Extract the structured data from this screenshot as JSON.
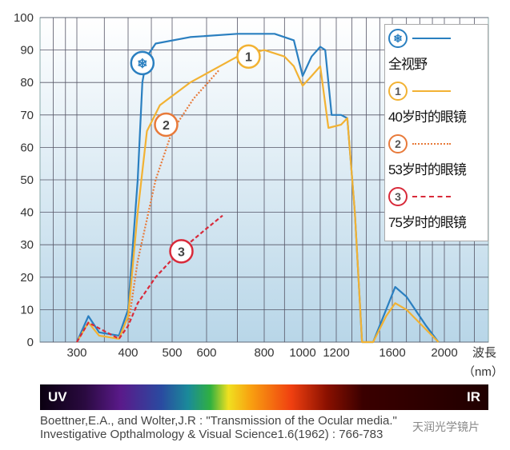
{
  "chart_data": {
    "type": "line",
    "title": "",
    "xlabel": "波長（nm）",
    "ylabel": "",
    "x_scale": "log",
    "xlim": [
      240,
      2300
    ],
    "ylim": [
      0,
      100
    ],
    "yticks": [
      0,
      10,
      20,
      30,
      40,
      50,
      60,
      70,
      80,
      90,
      100
    ],
    "xticks": [
      300,
      400,
      500,
      600,
      800,
      1000,
      1200,
      1600,
      2000
    ],
    "xlabel_line1": "波長",
    "xlabel_line2": "（nm）",
    "grid": true,
    "legend_position": "top-right",
    "series": [
      {
        "name": "全视野",
        "marker": "❄",
        "color": "#2a7fc0",
        "style": "solid",
        "points": [
          [
            300,
            0
          ],
          [
            320,
            8
          ],
          [
            340,
            3
          ],
          [
            380,
            2
          ],
          [
            400,
            10
          ],
          [
            420,
            50
          ],
          [
            430,
            80
          ],
          [
            440,
            88
          ],
          [
            460,
            92
          ],
          [
            550,
            94
          ],
          [
            700,
            95
          ],
          [
            850,
            95
          ],
          [
            950,
            93
          ],
          [
            1000,
            82
          ],
          [
            1050,
            88
          ],
          [
            1100,
            91
          ],
          [
            1130,
            90
          ],
          [
            1170,
            70
          ],
          [
            1230,
            70
          ],
          [
            1270,
            69
          ],
          [
            1320,
            40
          ],
          [
            1370,
            0
          ],
          [
            1450,
            0
          ],
          [
            1550,
            10
          ],
          [
            1620,
            17
          ],
          [
            1700,
            14
          ],
          [
            1850,
            5
          ],
          [
            1950,
            0
          ]
        ],
        "label_at": [
          430,
          86
        ]
      },
      {
        "name": "40岁时的眼镜",
        "marker": "1",
        "color": "#f2b233",
        "style": "solid",
        "points": [
          [
            300,
            0
          ],
          [
            320,
            6
          ],
          [
            340,
            2
          ],
          [
            380,
            1
          ],
          [
            400,
            8
          ],
          [
            420,
            40
          ],
          [
            440,
            65
          ],
          [
            470,
            73
          ],
          [
            550,
            80
          ],
          [
            700,
            88
          ],
          [
            800,
            90
          ],
          [
            900,
            88
          ],
          [
            950,
            85
          ],
          [
            1000,
            79
          ],
          [
            1050,
            82
          ],
          [
            1100,
            85
          ],
          [
            1150,
            66
          ],
          [
            1230,
            67
          ],
          [
            1270,
            69
          ],
          [
            1320,
            40
          ],
          [
            1370,
            0
          ],
          [
            1450,
            0
          ],
          [
            1550,
            8
          ],
          [
            1620,
            12
          ],
          [
            1700,
            10
          ],
          [
            1950,
            0
          ]
        ],
        "label_at": [
          740,
          88
        ]
      },
      {
        "name": "53岁时的眼镜",
        "marker": "2",
        "color": "#e87a3a",
        "style": "dotted",
        "points": [
          [
            400,
            5
          ],
          [
            420,
            25
          ],
          [
            460,
            50
          ],
          [
            500,
            65
          ],
          [
            560,
            75
          ],
          [
            640,
            84
          ]
        ],
        "label_at": [
          485,
          67
        ]
      },
      {
        "name": "75岁时的眼镜",
        "marker": "3",
        "color": "#d82a3a",
        "style": "dashed",
        "points": [
          [
            300,
            0
          ],
          [
            320,
            6
          ],
          [
            380,
            1
          ],
          [
            400,
            5
          ],
          [
            420,
            12
          ],
          [
            460,
            20
          ],
          [
            520,
            28
          ],
          [
            600,
            35
          ],
          [
            650,
            39
          ]
        ],
        "label_at": [
          525,
          28
        ]
      }
    ]
  },
  "spectrum": {
    "left": "UV",
    "right": "IR"
  },
  "citation": {
    "line1": "Boettner,E.A., and Wolter,J.R : \"Transmission of the Ocular media.\"",
    "line2": "Investigative Opthalmology & Visual Science1.6(1962) : 766-783"
  },
  "watermark": "天润光学镜片"
}
